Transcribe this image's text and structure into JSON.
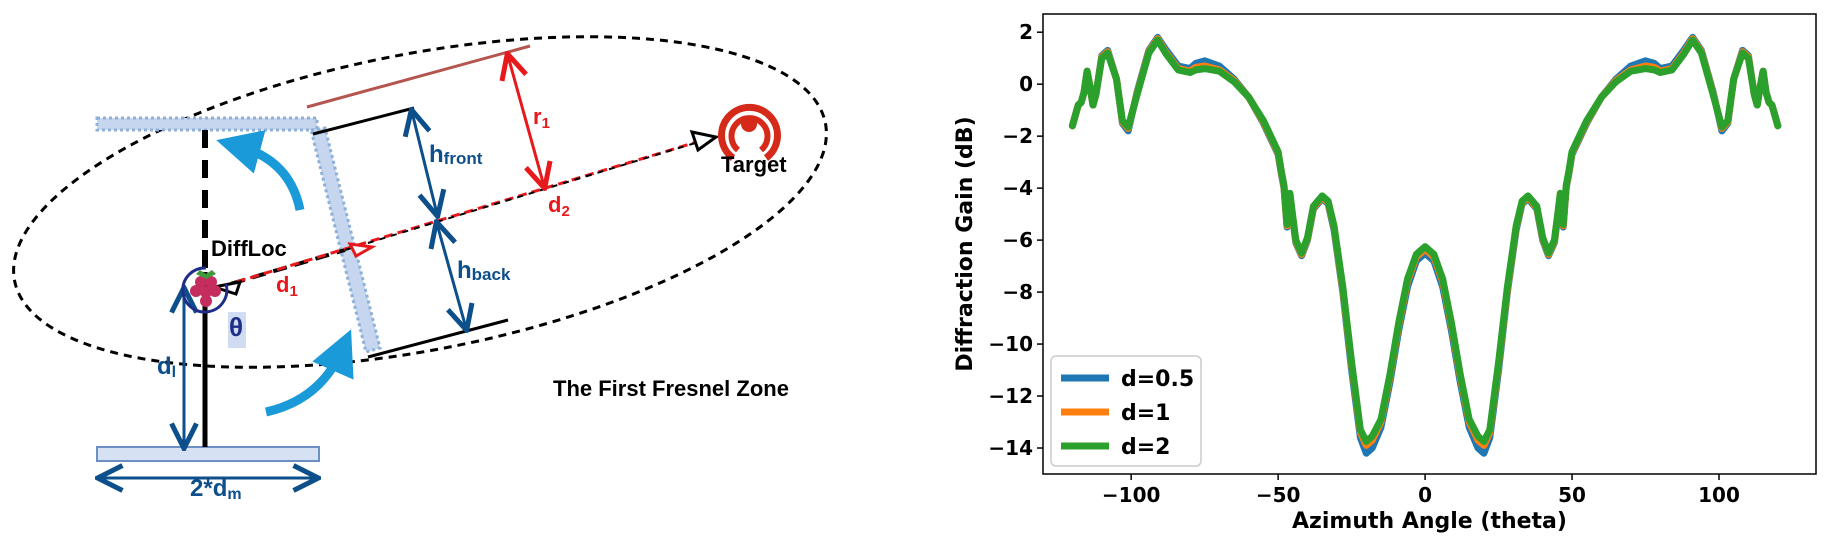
{
  "diagram": {
    "caption": "The First Fresnel Zone",
    "target_label": "Target",
    "device_label": "DiffLoc",
    "theta_label": "θ",
    "d1_label": "d",
    "d1_sub": "1",
    "d2_label": "d",
    "d2_sub": "2",
    "r1_label": "r",
    "r1_sub": "1",
    "hfront_label": "h",
    "hfront_sub": "front",
    "hback_label": "h",
    "hback_sub": "back",
    "dl_label": "d",
    "dl_sub": "l",
    "dm_label": "2*d",
    "dm_sub": "m",
    "colors": {
      "blue": "#0d4f8b",
      "red": "#e8191c",
      "arrow": "#1a9ad9",
      "panel": "#c5d6ee"
    }
  },
  "chart_data": {
    "type": "line",
    "xlabel": "Azimuth Angle (theta)",
    "ylabel": "Diffraction Gain (dB)",
    "xlim": [
      -130,
      133
    ],
    "ylim": [
      -15,
      2.7
    ],
    "xticks": [
      -100,
      -50,
      0,
      50,
      100
    ],
    "xtick_labels": [
      "−100",
      "−50",
      "0",
      "50",
      "100"
    ],
    "yticks": [
      2,
      0,
      -2,
      -4,
      -6,
      -8,
      -10,
      -12,
      -14
    ],
    "ytick_labels": [
      "2",
      "0",
      "−2",
      "−4",
      "−6",
      "−8",
      "−10",
      "−12",
      "−14"
    ],
    "grid": false,
    "legend_position": "lower-left",
    "series": [
      {
        "name": "d=0.5",
        "color": "#1f77b4",
        "x": [
          0,
          3,
          6,
          9,
          12,
          15,
          18,
          20,
          22,
          25,
          28,
          31,
          33,
          35,
          38,
          40,
          42,
          44,
          45,
          46,
          47,
          48,
          49,
          50,
          55,
          60,
          65,
          70,
          75,
          78,
          80,
          84,
          88,
          91,
          94,
          98,
          101,
          103,
          105,
          108,
          110,
          112,
          113,
          114,
          115,
          116,
          117,
          118,
          119,
          120
        ],
        "y": [
          -6.5,
          -6.8,
          -7.8,
          -9.5,
          -11.5,
          -13.2,
          -14.0,
          -14.2,
          -13.6,
          -11.0,
          -8.0,
          -5.6,
          -4.6,
          -4.4,
          -4.8,
          -6.0,
          -6.6,
          -6.1,
          -5.2,
          -4.3,
          -5.5,
          -4.0,
          -3.4,
          -2.7,
          -1.5,
          -0.5,
          0.2,
          0.7,
          0.9,
          0.8,
          0.6,
          0.7,
          1.3,
          1.8,
          1.3,
          -0.3,
          -1.8,
          -1.5,
          0.2,
          1.3,
          1.1,
          -0.4,
          -0.8,
          -0.1,
          0.5,
          -0.3,
          -0.7,
          -0.8,
          -1.2,
          -1.6
        ]
      },
      {
        "name": "d=1",
        "color": "#ff7f0e",
        "x": [
          0,
          3,
          6,
          9,
          12,
          15,
          18,
          20,
          22,
          25,
          28,
          31,
          33,
          35,
          38,
          40,
          42,
          44,
          45,
          46,
          47,
          48,
          49,
          50,
          55,
          60,
          65,
          70,
          75,
          78,
          80,
          84,
          88,
          91,
          94,
          98,
          101,
          103,
          105,
          108,
          110,
          112,
          113,
          114,
          115,
          116,
          117,
          118,
          119,
          120
        ],
        "y": [
          -6.35,
          -6.65,
          -7.6,
          -9.3,
          -11.3,
          -13.0,
          -13.7,
          -13.9,
          -13.4,
          -10.8,
          -7.9,
          -5.5,
          -4.55,
          -4.35,
          -4.75,
          -5.95,
          -6.55,
          -6.05,
          -5.15,
          -4.25,
          -5.45,
          -3.95,
          -3.35,
          -2.65,
          -1.45,
          -0.5,
          0.15,
          0.55,
          0.7,
          0.65,
          0.5,
          0.6,
          1.2,
          1.75,
          1.25,
          -0.35,
          -1.7,
          -1.45,
          0.2,
          1.25,
          1.05,
          -0.4,
          -0.8,
          -0.1,
          0.5,
          -0.3,
          -0.7,
          -0.8,
          -1.2,
          -1.6
        ]
      },
      {
        "name": "d=2",
        "color": "#2ca02c",
        "x": [
          0,
          3,
          6,
          9,
          12,
          15,
          18,
          20,
          22,
          25,
          28,
          31,
          33,
          35,
          38,
          40,
          42,
          44,
          45,
          46,
          47,
          48,
          49,
          50,
          55,
          60,
          65,
          70,
          75,
          78,
          80,
          84,
          88,
          91,
          94,
          98,
          101,
          103,
          105,
          108,
          110,
          112,
          113,
          114,
          115,
          116,
          117,
          118,
          119,
          120
        ],
        "y": [
          -6.25,
          -6.55,
          -7.5,
          -9.2,
          -11.2,
          -12.9,
          -13.55,
          -13.75,
          -13.3,
          -10.7,
          -7.8,
          -5.45,
          -4.5,
          -4.3,
          -4.7,
          -5.9,
          -6.5,
          -6.0,
          -5.1,
          -4.2,
          -5.4,
          -3.9,
          -3.3,
          -2.6,
          -1.4,
          -0.5,
          0.1,
          0.5,
          0.6,
          0.55,
          0.45,
          0.55,
          1.15,
          1.7,
          1.2,
          -0.4,
          -1.65,
          -1.4,
          0.2,
          1.2,
          1.0,
          -0.4,
          -0.8,
          -0.1,
          0.5,
          -0.3,
          -0.7,
          -0.8,
          -1.2,
          -1.6
        ]
      }
    ]
  }
}
